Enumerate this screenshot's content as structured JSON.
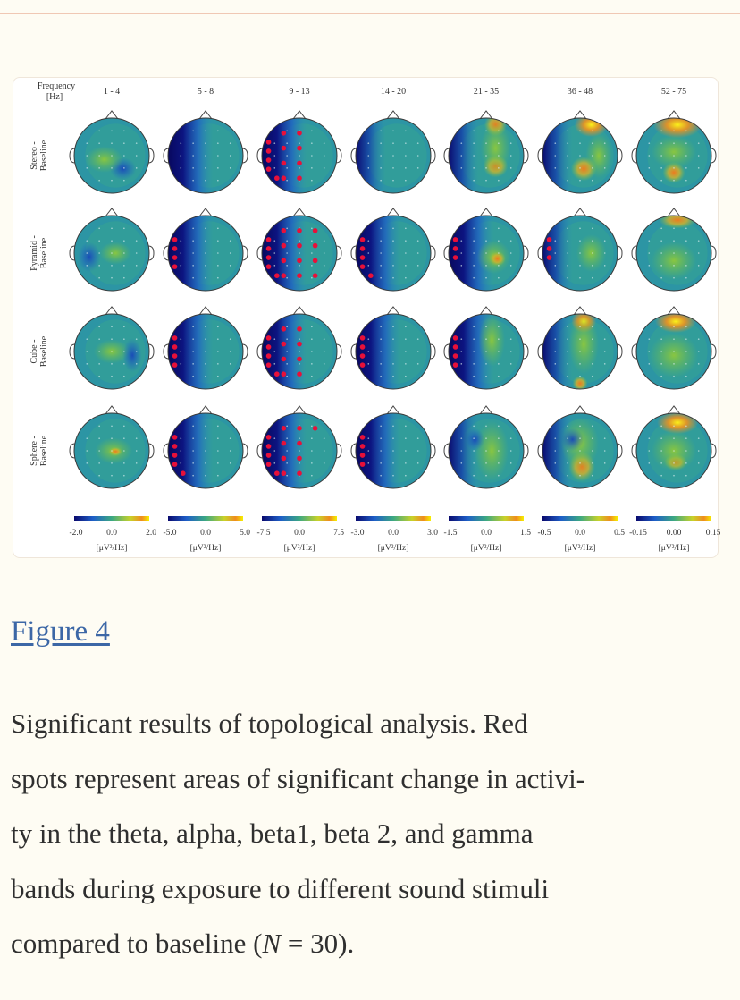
{
  "figure": {
    "header_label": [
      "Frequency",
      "[Hz]"
    ],
    "bands": [
      "1 - 4",
      "5 - 8",
      "9 - 13",
      "14 - 20",
      "21 - 35",
      "36 - 48",
      "52 - 75"
    ],
    "conditions": [
      [
        "Stereo -",
        "Baseline"
      ],
      [
        "Pyramid -",
        "Baseline"
      ],
      [
        "Cube -",
        "Baseline"
      ],
      [
        "Sphere -",
        "Baseline"
      ]
    ],
    "colorbars": [
      {
        "min": "-2.0",
        "mid": "0.0",
        "max": "2.0"
      },
      {
        "min": "-5.0",
        "mid": "0.0",
        "max": "5.0"
      },
      {
        "min": "-7.5",
        "mid": "0.0",
        "max": "7.5"
      },
      {
        "min": "-3.0",
        "mid": "0.0",
        "max": "3.0"
      },
      {
        "min": "-1.5",
        "mid": "0.0",
        "max": "1.5"
      },
      {
        "min": "-0.5",
        "mid": "0.0",
        "max": "0.5"
      },
      {
        "min": "-0.15",
        "mid": "0.00",
        "max": "0.15"
      }
    ],
    "unit": "[μV²/Hz]",
    "significant_electrodes": {
      "Stereo": {
        "9 - 13": 13
      },
      "Pyramid": {
        "5 - 8": 4,
        "9 - 13": 17,
        "14 - 20": 5,
        "21 - 35": 3,
        "36 - 48": 3
      },
      "Cube": {
        "5 - 8": 4,
        "9 - 13": 13,
        "14 - 20": 4,
        "21 - 35": 4
      },
      "Sphere": {
        "5 - 8": 5,
        "9 - 13": 14,
        "14 - 20": 4
      }
    },
    "colors": {
      "significant_dot": "#e8103a",
      "negative": "#0a0a6e",
      "neutral": "#3ca882",
      "positive": "#f5f000"
    }
  },
  "figure_link": "Figure 4",
  "caption": {
    "line1": "Significant results of topological analysis. Red",
    "line2": "spots represent areas of significant change in activi-",
    "line3": "ty in the theta, alpha, beta1, beta 2, and gamma",
    "line4": "bands during exposure to different sound stimuli",
    "line5_pre": "compared to baseline (",
    "line5_var": "N",
    "line5_post": " = 30)."
  }
}
